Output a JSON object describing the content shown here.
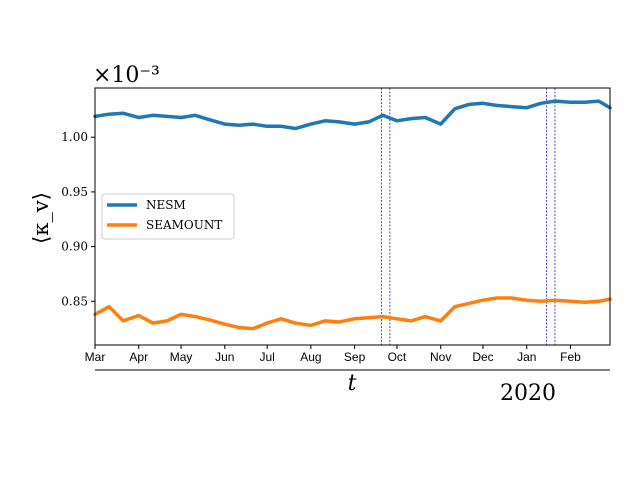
{
  "chart_data": {
    "type": "line",
    "title": "",
    "xlabel": "t",
    "ylabel": "⟨κ_v⟩",
    "y_multiplier": "×10⁻³",
    "x_year_label": "2020",
    "x_tick_labels": [
      "Mar",
      "Apr",
      "May",
      "Jun",
      "Jul",
      "Aug",
      "Sep",
      "Oct",
      "Nov",
      "Dec",
      "Jan",
      "Feb"
    ],
    "x_tick_dates": [
      "2019-03-01",
      "2019-04-01",
      "2019-05-01",
      "2019-06-01",
      "2019-07-01",
      "2019-08-01",
      "2019-09-01",
      "2019-10-01",
      "2019-11-01",
      "2019-12-01",
      "2020-01-01",
      "2020-02-01"
    ],
    "xlim": [
      "2019-03-01",
      "2020-02-29"
    ],
    "ylim": [
      0.81,
      1.045
    ],
    "y_ticks": [
      0.85,
      0.9,
      0.95,
      1.0
    ],
    "y_tick_labels": [
      "0.85",
      "0.90",
      "0.95",
      "1.00"
    ],
    "legend_position": "center-left",
    "grid": false,
    "vertical_lines": [
      "2019-09-20",
      "2019-09-26",
      "2020-01-15",
      "2020-01-21"
    ],
    "vertical_line_color": "#0000cc",
    "x": [
      "2019-03-01",
      "2019-03-11",
      "2019-03-21",
      "2019-04-01",
      "2019-04-11",
      "2019-04-21",
      "2019-05-01",
      "2019-05-11",
      "2019-05-21",
      "2019-06-01",
      "2019-06-11",
      "2019-06-21",
      "2019-07-01",
      "2019-07-11",
      "2019-07-21",
      "2019-08-01",
      "2019-08-11",
      "2019-08-21",
      "2019-09-01",
      "2019-09-11",
      "2019-09-21",
      "2019-10-01",
      "2019-10-11",
      "2019-10-21",
      "2019-11-01",
      "2019-11-11",
      "2019-11-21",
      "2019-12-01",
      "2019-12-11",
      "2019-12-21",
      "2020-01-01",
      "2020-01-11",
      "2020-01-21",
      "2020-02-01",
      "2020-02-11",
      "2020-02-21",
      "2020-02-29"
    ],
    "series": [
      {
        "name": "NESM",
        "color": "#1f77b4",
        "values": [
          1.019,
          1.021,
          1.022,
          1.018,
          1.02,
          1.019,
          1.018,
          1.02,
          1.016,
          1.012,
          1.011,
          1.012,
          1.01,
          1.01,
          1.008,
          1.012,
          1.015,
          1.014,
          1.012,
          1.014,
          1.02,
          1.015,
          1.017,
          1.018,
          1.012,
          1.026,
          1.03,
          1.031,
          1.029,
          1.028,
          1.027,
          1.031,
          1.033,
          1.032,
          1.032,
          1.033,
          1.027
        ]
      },
      {
        "name": "SEAMOUNT",
        "color": "#ff7f0e",
        "values": [
          0.838,
          0.845,
          0.832,
          0.837,
          0.83,
          0.832,
          0.838,
          0.836,
          0.833,
          0.829,
          0.826,
          0.825,
          0.83,
          0.834,
          0.83,
          0.828,
          0.832,
          0.831,
          0.834,
          0.835,
          0.836,
          0.834,
          0.832,
          0.836,
          0.832,
          0.845,
          0.848,
          0.851,
          0.853,
          0.853,
          0.851,
          0.85,
          0.851,
          0.85,
          0.849,
          0.85,
          0.852
        ]
      }
    ]
  }
}
